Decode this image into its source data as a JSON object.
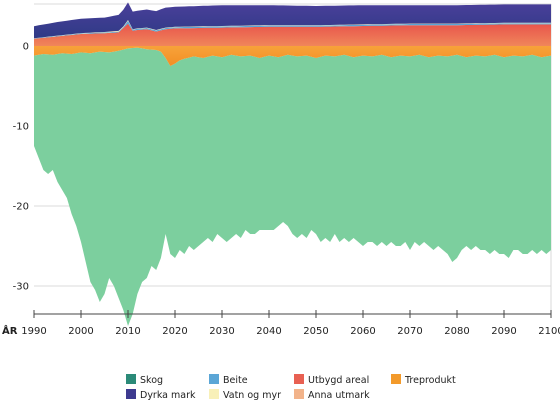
{
  "chart_data": {
    "type": "area",
    "title": "",
    "xlabel": "ÅR",
    "ylabel": "",
    "xlim": [
      1990,
      2100
    ],
    "ylim": [
      -35,
      6
    ],
    "x_ticks": [
      1990,
      2000,
      2010,
      2020,
      2030,
      2040,
      2050,
      2060,
      2070,
      2080,
      2090,
      2100
    ],
    "x_tick_labels": [
      "1990",
      "2000",
      "2010",
      "2020",
      "2030",
      "2040",
      "2050",
      "2060",
      "2070",
      "2080",
      "2090",
      "2100"
    ],
    "y_ticks": [
      0,
      -10,
      -20,
      -30
    ],
    "y_tick_labels": [
      "0",
      "-10",
      "-20",
      "-30"
    ],
    "grid": "horizontal",
    "legend_position": "bottom",
    "colors": {
      "Skog": "#2b8a78",
      "Skog_light": "#6cc49b",
      "Dyrka mark": "#3d3a8f",
      "Beite": "#5ba6d6",
      "Vatn og myr": "#f8f0b8",
      "Utbygd areal": "#e86052",
      "Anna utmark": "#f2b38a",
      "Treprodukt": "#f39a2b"
    },
    "negative_series": [
      {
        "name": "Skog",
        "points": [
          [
            1990,
            -12.5
          ],
          [
            1991,
            -14.0
          ],
          [
            1992,
            -15.5
          ],
          [
            1993,
            -16.0
          ],
          [
            1994,
            -15.5
          ],
          [
            1995,
            -17.0
          ],
          [
            1996,
            -18.0
          ],
          [
            1997,
            -19.0
          ],
          [
            1998,
            -21.0
          ],
          [
            1999,
            -22.5
          ],
          [
            2000,
            -24.5
          ],
          [
            2001,
            -27.0
          ],
          [
            2002,
            -29.5
          ],
          [
            2003,
            -30.5
          ],
          [
            2004,
            -32.0
          ],
          [
            2005,
            -31.0
          ],
          [
            2006,
            -29.0
          ],
          [
            2007,
            -30.0
          ],
          [
            2008,
            -31.5
          ],
          [
            2009,
            -33.0
          ],
          [
            2010,
            -35.0
          ],
          [
            2011,
            -33.5
          ],
          [
            2012,
            -31.0
          ],
          [
            2013,
            -29.5
          ],
          [
            2014,
            -29.0
          ],
          [
            2015,
            -27.5
          ],
          [
            2016,
            -28.0
          ],
          [
            2017,
            -26.5
          ],
          [
            2018,
            -23.5
          ],
          [
            2019,
            -26.0
          ],
          [
            2020,
            -26.5
          ],
          [
            2021,
            -25.5
          ],
          [
            2022,
            -26.0
          ],
          [
            2023,
            -25.0
          ],
          [
            2024,
            -25.5
          ],
          [
            2025,
            -25.0
          ],
          [
            2026,
            -24.5
          ],
          [
            2027,
            -24.0
          ],
          [
            2028,
            -24.5
          ],
          [
            2029,
            -23.5
          ],
          [
            2030,
            -24.0
          ],
          [
            2031,
            -24.5
          ],
          [
            2032,
            -24.0
          ],
          [
            2033,
            -23.5
          ],
          [
            2034,
            -24.0
          ],
          [
            2035,
            -23.0
          ],
          [
            2036,
            -23.5
          ],
          [
            2037,
            -23.5
          ],
          [
            2038,
            -23.0
          ],
          [
            2039,
            -23.0
          ],
          [
            2040,
            -23.0
          ],
          [
            2041,
            -23.0
          ],
          [
            2042,
            -22.5
          ],
          [
            2043,
            -22.0
          ],
          [
            2044,
            -22.5
          ],
          [
            2045,
            -23.5
          ],
          [
            2046,
            -24.0
          ],
          [
            2047,
            -23.5
          ],
          [
            2048,
            -24.0
          ],
          [
            2049,
            -23.0
          ],
          [
            2050,
            -23.5
          ],
          [
            2051,
            -24.5
          ],
          [
            2052,
            -24.0
          ],
          [
            2053,
            -24.5
          ],
          [
            2054,
            -23.5
          ],
          [
            2055,
            -24.5
          ],
          [
            2056,
            -24.0
          ],
          [
            2057,
            -24.5
          ],
          [
            2058,
            -24.0
          ],
          [
            2059,
            -24.5
          ],
          [
            2060,
            -25.0
          ],
          [
            2061,
            -24.5
          ],
          [
            2062,
            -24.5
          ],
          [
            2063,
            -25.0
          ],
          [
            2064,
            -24.5
          ],
          [
            2065,
            -25.0
          ],
          [
            2066,
            -24.5
          ],
          [
            2067,
            -25.0
          ],
          [
            2068,
            -25.0
          ],
          [
            2069,
            -24.5
          ],
          [
            2070,
            -25.5
          ],
          [
            2071,
            -24.5
          ],
          [
            2072,
            -25.0
          ],
          [
            2073,
            -24.5
          ],
          [
            2074,
            -25.0
          ],
          [
            2075,
            -25.5
          ],
          [
            2076,
            -25.0
          ],
          [
            2077,
            -25.5
          ],
          [
            2078,
            -26.0
          ],
          [
            2079,
            -27.0
          ],
          [
            2080,
            -26.5
          ],
          [
            2081,
            -25.5
          ],
          [
            2082,
            -25.0
          ],
          [
            2083,
            -25.5
          ],
          [
            2084,
            -25.0
          ],
          [
            2085,
            -25.5
          ],
          [
            2086,
            -25.5
          ],
          [
            2087,
            -26.0
          ],
          [
            2088,
            -25.5
          ],
          [
            2089,
            -26.0
          ],
          [
            2090,
            -26.0
          ],
          [
            2091,
            -26.5
          ],
          [
            2092,
            -25.5
          ],
          [
            2093,
            -25.5
          ],
          [
            2094,
            -26.0
          ],
          [
            2095,
            -26.0
          ],
          [
            2096,
            -25.5
          ],
          [
            2097,
            -26.0
          ],
          [
            2098,
            -25.5
          ],
          [
            2099,
            -26.0
          ],
          [
            2100,
            -25.5
          ]
        ],
        "top_points": [
          [
            1990,
            -1.2
          ],
          [
            1992,
            -1.0
          ],
          [
            1994,
            -1.1
          ],
          [
            1996,
            -0.9
          ],
          [
            1998,
            -1.0
          ],
          [
            2000,
            -0.8
          ],
          [
            2002,
            -0.9
          ],
          [
            2004,
            -0.7
          ],
          [
            2006,
            -0.8
          ],
          [
            2008,
            -0.6
          ],
          [
            2010,
            -0.3
          ],
          [
            2012,
            -0.2
          ],
          [
            2014,
            -0.4
          ],
          [
            2016,
            -0.5
          ],
          [
            2017,
            -0.7
          ],
          [
            2018,
            -1.5
          ],
          [
            2019,
            -2.5
          ],
          [
            2020,
            -2.2
          ],
          [
            2021,
            -1.8
          ],
          [
            2022,
            -1.6
          ],
          [
            2024,
            -1.3
          ],
          [
            2026,
            -1.5
          ],
          [
            2028,
            -1.2
          ],
          [
            2030,
            -1.4
          ],
          [
            2032,
            -1.1
          ],
          [
            2034,
            -1.3
          ],
          [
            2036,
            -1.2
          ],
          [
            2038,
            -1.5
          ],
          [
            2040,
            -1.2
          ],
          [
            2042,
            -1.4
          ],
          [
            2044,
            -1.1
          ],
          [
            2046,
            -1.3
          ],
          [
            2048,
            -1.2
          ],
          [
            2050,
            -1.5
          ],
          [
            2052,
            -1.2
          ],
          [
            2054,
            -1.3
          ],
          [
            2056,
            -1.1
          ],
          [
            2058,
            -1.4
          ],
          [
            2060,
            -1.2
          ],
          [
            2062,
            -1.3
          ],
          [
            2064,
            -1.1
          ],
          [
            2066,
            -1.4
          ],
          [
            2068,
            -1.2
          ],
          [
            2070,
            -1.3
          ],
          [
            2072,
            -1.1
          ],
          [
            2074,
            -1.4
          ],
          [
            2076,
            -1.2
          ],
          [
            2078,
            -1.3
          ],
          [
            2080,
            -1.1
          ],
          [
            2082,
            -1.4
          ],
          [
            2084,
            -1.2
          ],
          [
            2086,
            -1.3
          ],
          [
            2088,
            -1.1
          ],
          [
            2090,
            -1.4
          ],
          [
            2092,
            -1.2
          ],
          [
            2094,
            -1.3
          ],
          [
            2096,
            -1.1
          ],
          [
            2098,
            -1.4
          ],
          [
            2100,
            -1.2
          ]
        ]
      },
      {
        "name": "Treprodukt",
        "top_points": [
          [
            1990,
            0
          ],
          [
            2100,
            0
          ]
        ],
        "bottom_ref": "Skog.top_points"
      }
    ],
    "positive_series": [
      {
        "name": "Utbygd areal",
        "points": [
          [
            1990,
            0.9
          ],
          [
            1995,
            1.2
          ],
          [
            2000,
            1.5
          ],
          [
            2005,
            1.6
          ],
          [
            2008,
            1.7
          ],
          [
            2010,
            2.8
          ],
          [
            2011,
            1.9
          ],
          [
            2012,
            2.0
          ],
          [
            2014,
            2.1
          ],
          [
            2016,
            1.8
          ],
          [
            2018,
            2.1
          ],
          [
            2020,
            2.2
          ],
          [
            2030,
            2.3
          ],
          [
            2040,
            2.4
          ],
          [
            2050,
            2.4
          ],
          [
            2060,
            2.5
          ],
          [
            2070,
            2.6
          ],
          [
            2080,
            2.6
          ],
          [
            2090,
            2.7
          ],
          [
            2100,
            2.7
          ]
        ]
      },
      {
        "name": "Beite",
        "points": [
          [
            1990,
            0.05
          ],
          [
            2000,
            0.08
          ],
          [
            2009,
            0.1
          ],
          [
            2010,
            0.35
          ],
          [
            2011,
            0.15
          ],
          [
            2020,
            0.15
          ],
          [
            2050,
            0.15
          ],
          [
            2100,
            0.15
          ]
        ]
      },
      {
        "name": "Vatn og myr",
        "points": [
          [
            1990,
            0.03
          ],
          [
            2000,
            0.03
          ],
          [
            2010,
            0.1
          ],
          [
            2011,
            0.05
          ],
          [
            2100,
            0.05
          ]
        ]
      },
      {
        "name": "Dyrka mark",
        "points": [
          [
            1990,
            1.5
          ],
          [
            1995,
            1.7
          ],
          [
            2000,
            1.8
          ],
          [
            2005,
            1.8
          ],
          [
            2008,
            2.0
          ],
          [
            2010,
            2.2
          ],
          [
            2012,
            2.2
          ],
          [
            2015,
            2.3
          ],
          [
            2018,
            2.5
          ],
          [
            2020,
            2.5
          ],
          [
            2030,
            2.6
          ],
          [
            2040,
            2.5
          ],
          [
            2050,
            2.4
          ],
          [
            2060,
            2.4
          ],
          [
            2070,
            2.3
          ],
          [
            2080,
            2.3
          ],
          [
            2090,
            2.3
          ],
          [
            2100,
            2.3
          ]
        ]
      },
      {
        "name": "Anna utmark",
        "points": [
          [
            1990,
            0
          ],
          [
            2100,
            0
          ]
        ]
      }
    ],
    "legend": [
      {
        "name": "Skog",
        "col": 0,
        "row": 0
      },
      {
        "name": "Dyrka mark",
        "col": 0,
        "row": 1
      },
      {
        "name": "Beite",
        "col": 1,
        "row": 0
      },
      {
        "name": "Vatn og myr",
        "col": 1,
        "row": 1
      },
      {
        "name": "Utbygd areal",
        "col": 2,
        "row": 0
      },
      {
        "name": "Anna utmark",
        "col": 2,
        "row": 1
      },
      {
        "name": "Treprodukt",
        "col": 3,
        "row": 0
      }
    ]
  }
}
